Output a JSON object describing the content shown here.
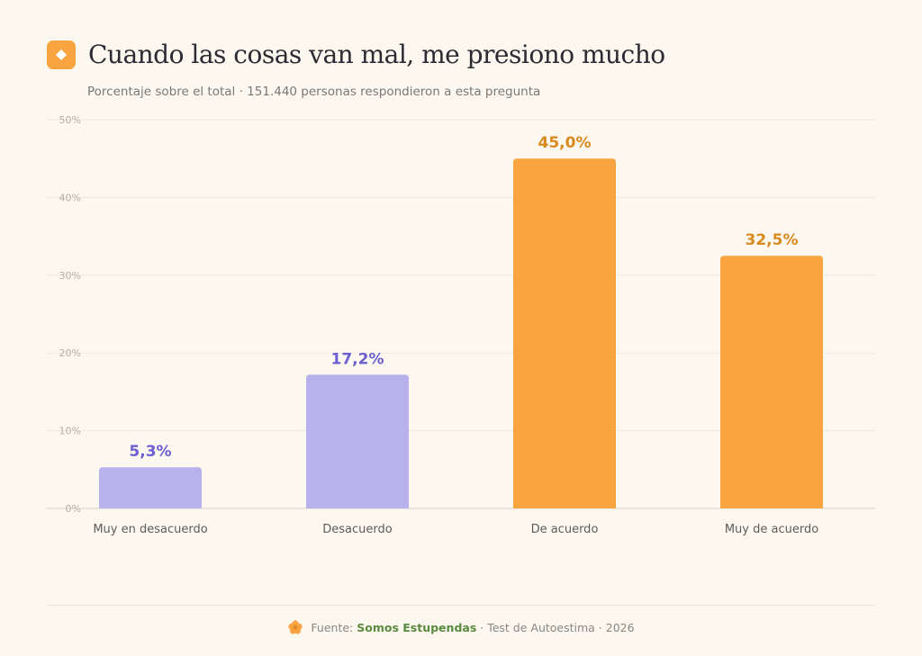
{
  "header": {
    "title": "Cuando las cosas van mal, me presiono mucho",
    "subtitle": "Porcentaje sobre el total · 151.440 personas respondieron a esta pregunta"
  },
  "footer": {
    "prefix": "Fuente:",
    "brand": "Somos Estupendas",
    "suffix": "· Test de Autoestima · 2026"
  },
  "colors": {
    "disagree": "#b7b2ec",
    "disagree_label": "#6b5fd1",
    "agree": "#f7a441",
    "agree_label": "#d98a1e",
    "accent": "#f7a441"
  },
  "chart_data": {
    "type": "bar",
    "categories": [
      "Muy en desacuerdo",
      "Desacuerdo",
      "De acuerdo",
      "Muy de acuerdo"
    ],
    "values": [
      5.3,
      17.2,
      45.0,
      32.5
    ],
    "value_labels": [
      "5,3%",
      "17,2%",
      "45,0%",
      "32,5%"
    ],
    "ylim": [
      0,
      50
    ],
    "yticks": [
      "0%",
      "10%",
      "20%",
      "30%",
      "40%",
      "50%"
    ],
    "grid": true,
    "title": "Cuando las cosas van mal, me presiono mucho"
  }
}
